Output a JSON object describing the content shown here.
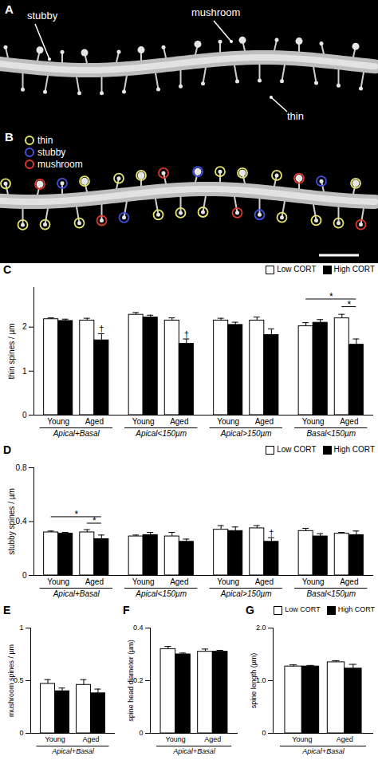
{
  "chart_data": [
    {
      "panel": "A",
      "type": "image",
      "annotations": [
        "stubby",
        "mushroom",
        "thin"
      ]
    },
    {
      "panel": "B",
      "type": "image",
      "legend": "top-left",
      "series": [
        {
          "name": "thin",
          "color": "#e8e66e"
        },
        {
          "name": "stubby",
          "color": "#3f52e0"
        },
        {
          "name": "mushroom",
          "color": "#e0392b"
        }
      ]
    },
    {
      "panel": "C",
      "type": "bar",
      "y_label": "thin spines / µm",
      "ylim": [
        0,
        2.9
      ],
      "yticks": [
        0,
        1,
        2
      ],
      "legend": "top-right",
      "series": [
        {
          "name": "Low CORT",
          "color": "#ffffff"
        },
        {
          "name": "High CORT",
          "color": "#000000"
        }
      ],
      "groups": [
        {
          "name": "Apical+Basal",
          "categories": [
            "Young",
            "Aged"
          ],
          "series": [
            {
              "name": "Low CORT",
              "values": [
                2.18,
                2.15
              ],
              "errors": [
                0.03,
                0.05
              ]
            },
            {
              "name": "High CORT",
              "values": [
                2.14,
                1.7
              ],
              "errors": [
                0.04,
                0.15
              ]
            }
          ],
          "annotations": [
            {
              "text": "†",
              "category": "Aged",
              "series": "High CORT"
            }
          ]
        },
        {
          "name": "Apical<150µm",
          "categories": [
            "Young",
            "Aged"
          ],
          "series": [
            {
              "name": "Low CORT",
              "values": [
                2.28,
                2.15
              ],
              "errors": [
                0.05,
                0.06
              ]
            },
            {
              "name": "High CORT",
              "values": [
                2.22,
                1.62
              ],
              "errors": [
                0.05,
                0.11
              ]
            }
          ],
          "annotations": [
            {
              "text": "†",
              "category": "Aged",
              "series": "High CORT"
            }
          ]
        },
        {
          "name": "Apical>150µm",
          "categories": [
            "Young",
            "Aged"
          ],
          "series": [
            {
              "name": "Low CORT",
              "values": [
                2.15,
                2.15
              ],
              "errors": [
                0.05,
                0.08
              ]
            },
            {
              "name": "High CORT",
              "values": [
                2.05,
                1.82
              ],
              "errors": [
                0.06,
                0.14
              ]
            }
          ]
        },
        {
          "name": "Basal<150µm",
          "categories": [
            "Young",
            "Aged"
          ],
          "series": [
            {
              "name": "Low CORT",
              "values": [
                2.02,
                2.2
              ],
              "errors": [
                0.08,
                0.09
              ]
            },
            {
              "name": "High CORT",
              "values": [
                2.1,
                1.6
              ],
              "errors": [
                0.07,
                0.13
              ]
            }
          ],
          "annotations": [
            {
              "text": "*",
              "from": {
                "category": "Aged",
                "series": "Low CORT"
              },
              "to": {
                "category": "Aged",
                "series": "High CORT"
              }
            },
            {
              "text": "*",
              "from": {
                "category": "Young",
                "series": "Low CORT"
              },
              "to": {
                "category": "Aged",
                "series": "High CORT"
              }
            }
          ]
        }
      ]
    },
    {
      "panel": "D",
      "type": "bar",
      "y_label": "stubby spines / µm",
      "ylim": [
        0,
        0.8
      ],
      "yticks": [
        0,
        0.4,
        0.8
      ],
      "legend": "top-right",
      "series": [
        {
          "name": "Low CORT",
          "color": "#ffffff"
        },
        {
          "name": "High CORT",
          "color": "#000000"
        }
      ],
      "groups": [
        {
          "name": "Apical+Basal",
          "categories": [
            "Young",
            "Aged"
          ],
          "series": [
            {
              "name": "Low CORT",
              "values": [
                0.32,
                0.32
              ],
              "errors": [
                0.01,
                0.02
              ]
            },
            {
              "name": "High CORT",
              "values": [
                0.31,
                0.27
              ],
              "errors": [
                0.01,
                0.03
              ]
            }
          ],
          "annotations": [
            {
              "text": "*",
              "from": {
                "category": "Aged",
                "series": "Low CORT"
              },
              "to": {
                "category": "Aged",
                "series": "High CORT"
              }
            },
            {
              "text": "*",
              "from": {
                "category": "Young",
                "series": "Low CORT"
              },
              "to": {
                "category": "Aged",
                "series": "High CORT"
              }
            }
          ]
        },
        {
          "name": "Apical<150µm",
          "categories": [
            "Young",
            "Aged"
          ],
          "series": [
            {
              "name": "Low CORT",
              "values": [
                0.29,
                0.29
              ],
              "errors": [
                0.01,
                0.03
              ]
            },
            {
              "name": "High CORT",
              "values": [
                0.3,
                0.25
              ],
              "errors": [
                0.02,
                0.02
              ]
            }
          ]
        },
        {
          "name": "Apical>150µm",
          "categories": [
            "Young",
            "Aged"
          ],
          "series": [
            {
              "name": "Low CORT",
              "values": [
                0.34,
                0.35
              ],
              "errors": [
                0.03,
                0.02
              ]
            },
            {
              "name": "High CORT",
              "values": [
                0.33,
                0.25
              ],
              "errors": [
                0.03,
                0.03
              ]
            }
          ],
          "annotations": [
            {
              "text": "†",
              "category": "Aged",
              "series": "High CORT"
            }
          ]
        },
        {
          "name": "Basal<150µm",
          "categories": [
            "Young",
            "Aged"
          ],
          "series": [
            {
              "name": "Low CORT",
              "values": [
                0.33,
                0.31
              ],
              "errors": [
                0.02,
                0.01
              ]
            },
            {
              "name": "High CORT",
              "values": [
                0.29,
                0.3
              ],
              "errors": [
                0.02,
                0.03
              ]
            }
          ]
        }
      ]
    },
    {
      "panel": "E",
      "type": "bar",
      "y_label": "mushroom spines / µm",
      "ylim": [
        0,
        1
      ],
      "yticks": [
        0,
        0.5,
        1
      ],
      "series": [
        {
          "name": "Low CORT",
          "color": "#ffffff"
        },
        {
          "name": "High CORT",
          "color": "#000000"
        }
      ],
      "groups": [
        {
          "name": "Apical+Basal",
          "categories": [
            "Young",
            "Aged"
          ],
          "series": [
            {
              "name": "Low CORT",
              "values": [
                0.47,
                0.46
              ],
              "errors": [
                0.04,
                0.05
              ]
            },
            {
              "name": "High CORT",
              "values": [
                0.4,
                0.38
              ],
              "errors": [
                0.03,
                0.04
              ]
            }
          ]
        }
      ]
    },
    {
      "panel": "F",
      "type": "bar",
      "y_label": "spine head diameter (µm)",
      "ylim": [
        0,
        0.4
      ],
      "yticks": [
        0,
        0.2,
        0.4
      ],
      "series": [
        {
          "name": "Low CORT",
          "color": "#ffffff"
        },
        {
          "name": "High CORT",
          "color": "#000000"
        }
      ],
      "groups": [
        {
          "name": "Apical+Basal",
          "categories": [
            "Young",
            "Aged"
          ],
          "series": [
            {
              "name": "Low CORT",
              "values": [
                0.32,
                0.31
              ],
              "errors": [
                0.01,
                0.01
              ]
            },
            {
              "name": "High CORT",
              "values": [
                0.3,
                0.31
              ],
              "errors": [
                0.005,
                0.005
              ]
            }
          ]
        }
      ]
    },
    {
      "panel": "G",
      "type": "bar",
      "y_label": "spine length (µm)",
      "ylim": [
        0,
        2
      ],
      "yticks": [
        0,
        {
          "value": 1,
          "label": "1.0"
        },
        {
          "value": 2,
          "label": "2.0"
        }
      ],
      "legend": "top-right",
      "series": [
        {
          "name": "Low CORT",
          "color": "#ffffff"
        },
        {
          "name": "High CORT",
          "color": "#000000"
        }
      ],
      "groups": [
        {
          "name": "Apical+Basal",
          "categories": [
            "Young",
            "Aged"
          ],
          "series": [
            {
              "name": "Low CORT",
              "values": [
                1.27,
                1.35
              ],
              "errors": [
                0.03,
                0.03
              ]
            },
            {
              "name": "High CORT",
              "values": [
                1.27,
                1.23
              ],
              "errors": [
                0.02,
                0.08
              ]
            }
          ]
        }
      ]
    }
  ]
}
